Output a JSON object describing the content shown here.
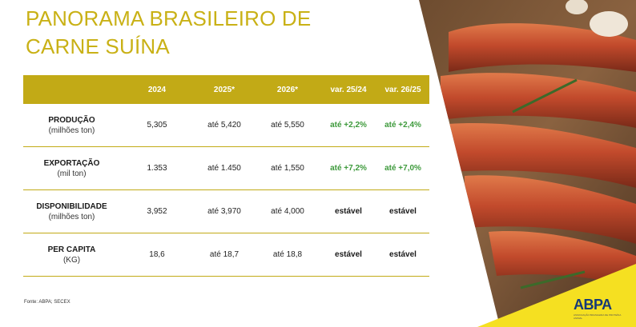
{
  "title": {
    "line1": "PANORAMA BRASILEIRO DE",
    "line2": "CARNE SUÍNA"
  },
  "table": {
    "headers": [
      "",
      "2024",
      "2025*",
      "2026*",
      "var. 25/24",
      "var. 26/25"
    ],
    "rows": [
      {
        "label": "PRODUÇÃO",
        "sublabel": "(milhões ton)",
        "v2024": "5,305",
        "v2025": "até 5,420",
        "v2026": "até 5,550",
        "var1": "até +2,2%",
        "var2": "até +2,4%"
      },
      {
        "label": "EXPORTAÇÃO",
        "sublabel": "(mil ton)",
        "v2024": "1.353",
        "v2025": "até 1.450",
        "v2026": "até 1,550",
        "var1": "até +7,2%",
        "var2": "até +7,0%"
      },
      {
        "label": "DISPONIBILIDADE",
        "sublabel": "(milhões ton)",
        "v2024": "3,952",
        "v2025": "até 3,970",
        "v2026": "até 4,000",
        "var1": "estável",
        "var2": "estável"
      },
      {
        "label": "PER CAPITA",
        "sublabel": "(KG)",
        "v2024": "18,6",
        "v2025": "até 18,7",
        "v2026": "até 18,8",
        "var1": "estável",
        "var2": "estável"
      }
    ]
  },
  "source": "Fonte: ABPA; SECEX",
  "logo": {
    "text": "ABPA",
    "tagline": "ASSOCIAÇÃO BRASILEIRA DE PROTEÍNA ANIMAL"
  },
  "colors": {
    "accent": "#c2aa16",
    "title": "#c9b116",
    "positive": "#3e9a3c",
    "logo": "#163a78"
  }
}
